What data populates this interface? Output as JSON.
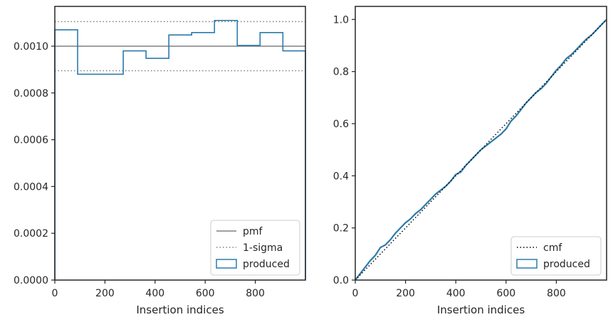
{
  "colors": {
    "produced": "#2b7bac",
    "pmf": "#808080",
    "sigma": "#808080",
    "cmf": "#000000",
    "frame": "#262626",
    "legend_border": "#cccccc"
  },
  "chart_data": [
    {
      "type": "histogram",
      "xlabel": "Insertion indices",
      "ylabel": "",
      "xlim": [
        0,
        1000
      ],
      "ylim": [
        0,
        0.00117
      ],
      "xticks": [
        0,
        200,
        400,
        600,
        800
      ],
      "yticks": [
        0.0,
        0.0002,
        0.0004,
        0.0006,
        0.0008,
        0.001
      ],
      "xtick_labels": [
        "0",
        "200",
        "400",
        "600",
        "800"
      ],
      "ytick_labels": [
        "0.0000",
        "0.0002",
        "0.0004",
        "0.0006",
        "0.0008",
        "0.0010"
      ],
      "bin_edges": [
        0,
        91,
        273,
        364,
        455,
        546,
        637,
        728,
        819,
        910,
        1000
      ],
      "values": [
        0.00107,
        0.00088,
        0.00098,
        0.000948,
        0.001048,
        0.001058,
        0.00111,
        0.001003,
        0.001058,
        0.00098
      ],
      "pmf": 0.001,
      "sigma_band": [
        0.000895,
        0.001105
      ],
      "legend": {
        "placement": "lower right",
        "entries": [
          {
            "label": "pmf",
            "kind": "line"
          },
          {
            "label": "1-sigma",
            "kind": "dotted"
          },
          {
            "label": "produced",
            "kind": "patch"
          }
        ]
      }
    },
    {
      "type": "line",
      "xlabel": "Insertion indices",
      "ylabel": "",
      "xlim": [
        0,
        1000
      ],
      "ylim": [
        0,
        1.05
      ],
      "xticks": [
        0,
        200,
        400,
        600,
        800
      ],
      "yticks": [
        0.0,
        0.2,
        0.4,
        0.6,
        0.8,
        1.0
      ],
      "xtick_labels": [
        "0",
        "200",
        "400",
        "600",
        "800"
      ],
      "ytick_labels": [
        "0.0",
        "0.2",
        "0.4",
        "0.6",
        "0.8",
        "1.0"
      ],
      "cmf": {
        "x": [
          0,
          1000
        ],
        "y": [
          0,
          1.0
        ]
      },
      "produced": {
        "x": [
          0,
          20,
          40,
          60,
          80,
          100,
          120,
          140,
          160,
          180,
          200,
          220,
          240,
          260,
          280,
          300,
          320,
          340,
          360,
          380,
          400,
          420,
          440,
          460,
          480,
          500,
          520,
          540,
          560,
          580,
          600,
          620,
          640,
          660,
          680,
          700,
          720,
          740,
          760,
          780,
          800,
          820,
          840,
          860,
          880,
          900,
          920,
          940,
          960,
          980,
          1000
        ],
        "y": [
          0,
          0.025,
          0.05,
          0.075,
          0.095,
          0.125,
          0.135,
          0.155,
          0.18,
          0.2,
          0.22,
          0.235,
          0.255,
          0.27,
          0.29,
          0.31,
          0.33,
          0.345,
          0.36,
          0.38,
          0.405,
          0.415,
          0.44,
          0.46,
          0.48,
          0.5,
          0.515,
          0.53,
          0.545,
          0.56,
          0.58,
          0.61,
          0.63,
          0.655,
          0.68,
          0.7,
          0.72,
          0.735,
          0.755,
          0.78,
          0.805,
          0.825,
          0.85,
          0.865,
          0.885,
          0.905,
          0.925,
          0.94,
          0.96,
          0.98,
          1.0
        ]
      },
      "legend": {
        "placement": "lower right",
        "entries": [
          {
            "label": "cmf",
            "kind": "dotted"
          },
          {
            "label": "produced",
            "kind": "patch"
          }
        ]
      }
    }
  ]
}
